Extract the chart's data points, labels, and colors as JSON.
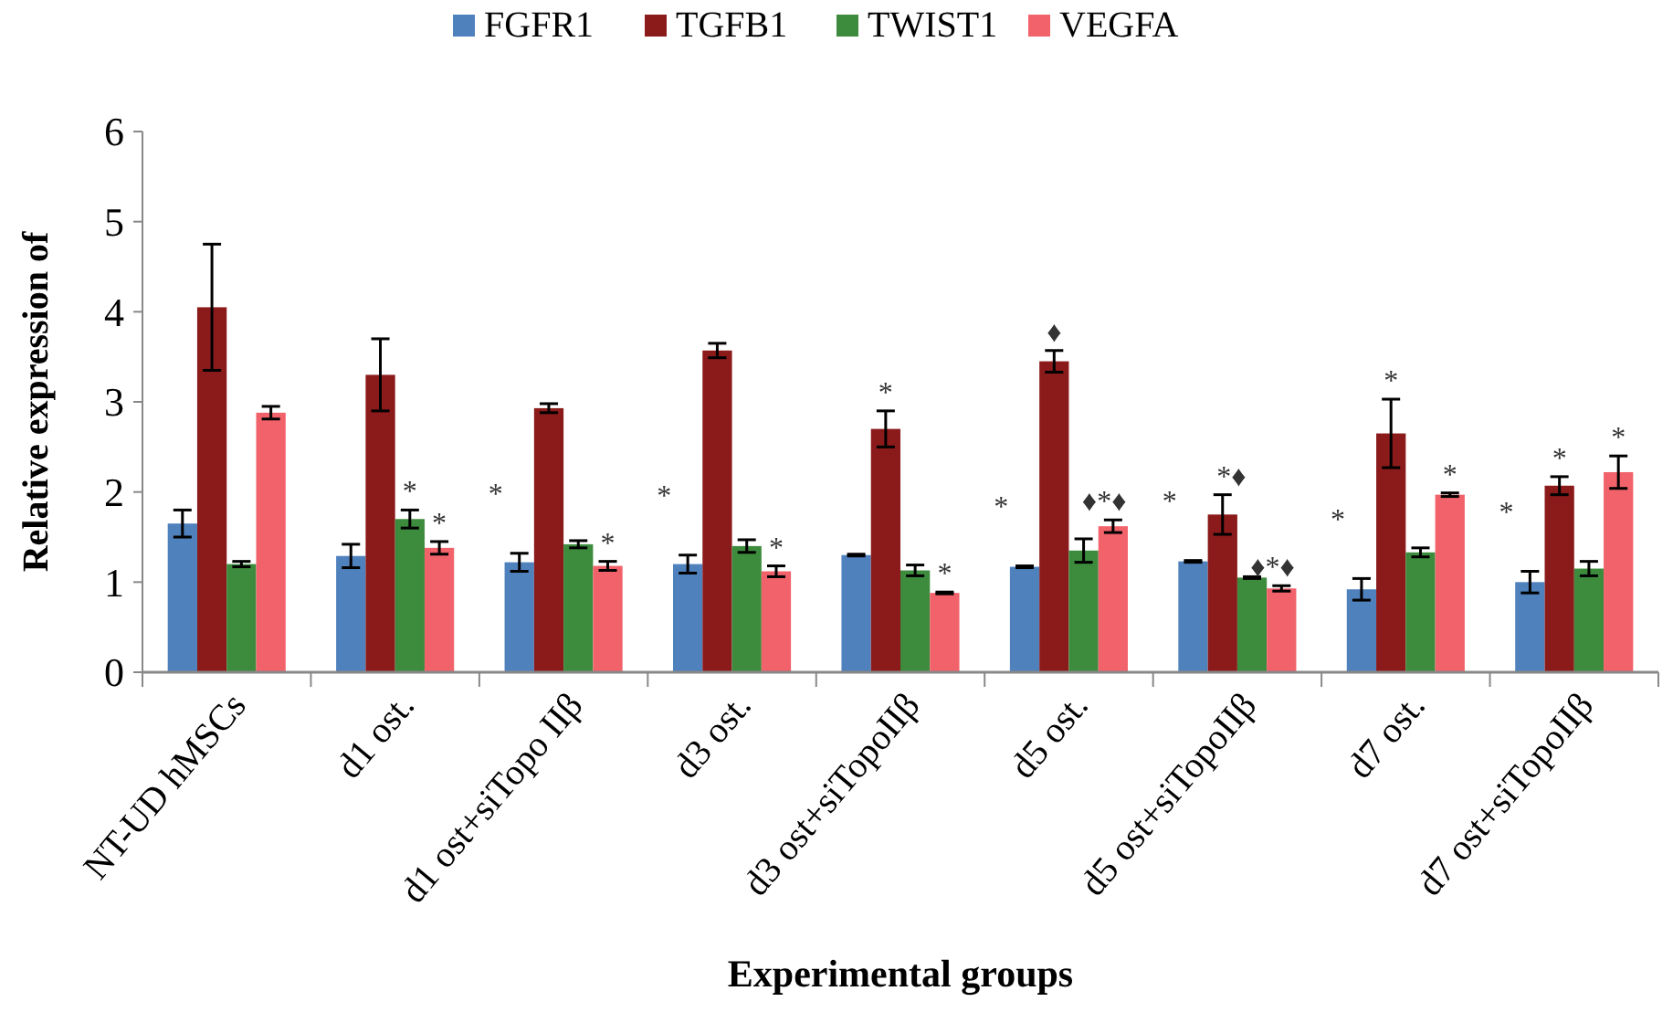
{
  "chart_data": {
    "type": "bar",
    "xlabel": "Experimental groups",
    "ylabel": "Relative expression of",
    "categories": [
      "NT-UD hMSCs",
      "d1 ost.",
      "d1 ost+siTopo IIβ",
      "d3 ost.",
      "d3 ost+siTopoIIβ",
      "d5 ost.",
      "d5 ost+siTopoIIβ",
      "d7 ost.",
      "d7 ost+siTopoIIβ"
    ],
    "series": [
      {
        "name": "FGFR1",
        "color": "#4f81bd",
        "values": [
          1.65,
          1.29,
          1.22,
          1.2,
          1.3,
          1.17,
          1.23,
          0.92,
          1.0
        ],
        "errors": [
          0.15,
          0.13,
          0.1,
          0.1,
          0.01,
          0.01,
          0.01,
          0.12,
          0.12
        ]
      },
      {
        "name": "TGFB1",
        "color": "#8b1a1a",
        "values": [
          4.05,
          3.3,
          2.93,
          3.57,
          2.7,
          3.45,
          1.75,
          2.65,
          2.07
        ],
        "errors": [
          0.7,
          0.4,
          0.05,
          0.08,
          0.2,
          0.12,
          0.22,
          0.38,
          0.1
        ]
      },
      {
        "name": "TWIST1",
        "color": "#3d8b3d",
        "values": [
          1.2,
          1.7,
          1.42,
          1.4,
          1.13,
          1.35,
          1.05,
          1.33,
          1.15
        ],
        "errors": [
          0.03,
          0.1,
          0.04,
          0.07,
          0.06,
          0.13,
          0.01,
          0.05,
          0.08
        ]
      },
      {
        "name": "VEGFA",
        "color": "#f2626b",
        "values": [
          2.88,
          1.38,
          1.18,
          1.12,
          0.88,
          1.62,
          0.93,
          1.97,
          2.22
        ],
        "errors": [
          0.07,
          0.07,
          0.05,
          0.06,
          0.01,
          0.07,
          0.03,
          0.02,
          0.18
        ]
      }
    ],
    "ylim": [
      0,
      6
    ],
    "yticks": [
      0,
      1,
      2,
      3,
      4,
      5,
      6
    ],
    "grid": false,
    "legend": "top",
    "annotations": [
      "*",
      "*",
      "*",
      "*",
      "*",
      "*",
      "*",
      "*",
      "*",
      "♦",
      "♦*♦",
      "*",
      "*♦",
      "♦*♦",
      "*",
      "*",
      "*",
      "*",
      "*",
      "*"
    ]
  }
}
